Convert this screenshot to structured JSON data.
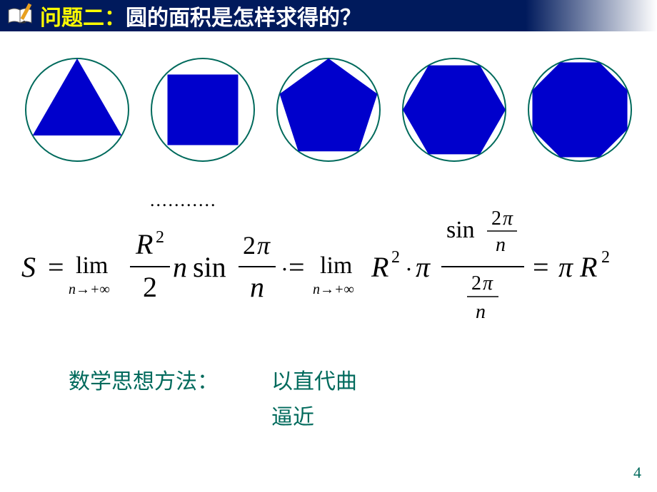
{
  "header": {
    "prefix": "问题二：",
    "title": "圆的面积是怎样求得的？",
    "prefix_color": "#ffff00",
    "title_color": "#ffffff",
    "bg_start": "#001a5c"
  },
  "polygons": {
    "circle_stroke": "#006a5c",
    "circle_stroke_width": 2,
    "fill": "#0000cc",
    "shapes": [
      {
        "sides": 3
      },
      {
        "sides": 4
      },
      {
        "sides": 5
      },
      {
        "sides": 6
      },
      {
        "sides": 8
      }
    ]
  },
  "dots": "...........",
  "formula": {
    "S": "S",
    "eq": "=",
    "lim": "lim",
    "n_to_inf": "n→+∞",
    "R": "R",
    "two": "2",
    "n": "n",
    "sin": "sin",
    "twopi": "2π",
    "pi": "π",
    "dot": "·",
    "result": "πR",
    "sq": "2",
    "fontsize_main": 40,
    "fontsize_sub": 20
  },
  "methods": {
    "label": "数学思想方法：",
    "text1": "以直代曲",
    "text2": "逼近",
    "color": "#006a5c",
    "fontsize": 30
  },
  "page_number": "4"
}
